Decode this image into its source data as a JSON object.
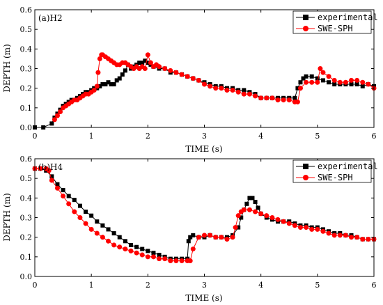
{
  "chart_data": [
    {
      "type": "scatter",
      "title": "(a)H2",
      "xlabel": "TIME (s)",
      "ylabel": "DEPTH (m)",
      "xlim": [
        0,
        6
      ],
      "ylim": [
        0,
        0.6
      ],
      "xticks": [
        "0",
        "1",
        "2",
        "3",
        "4",
        "5",
        "6"
      ],
      "yticks": [
        "0.0",
        "0.1",
        "0.2",
        "0.3",
        "0.4",
        "0.5",
        "0.6"
      ],
      "legend_position": "top-right",
      "series": [
        {
          "name": "experimental",
          "color": "#000000",
          "marker": "square",
          "x": [
            0.0,
            0.15,
            0.3,
            0.35,
            0.4,
            0.45,
            0.5,
            0.55,
            0.6,
            0.65,
            0.7,
            0.75,
            0.8,
            0.85,
            0.9,
            0.95,
            1.0,
            1.05,
            1.1,
            1.15,
            1.2,
            1.25,
            1.3,
            1.35,
            1.4,
            1.45,
            1.5,
            1.55,
            1.6,
            1.65,
            1.7,
            1.75,
            1.8,
            1.85,
            1.9,
            1.95,
            2.0,
            2.05,
            2.1,
            2.2,
            2.3,
            2.4,
            2.5,
            2.6,
            2.7,
            2.8,
            2.9,
            3.0,
            3.1,
            3.2,
            3.3,
            3.4,
            3.5,
            3.6,
            3.7,
            3.8,
            3.9,
            4.0,
            4.1,
            4.2,
            4.3,
            4.4,
            4.5,
            4.6,
            4.65,
            4.7,
            4.75,
            4.8,
            4.9,
            5.0,
            5.1,
            5.2,
            5.3,
            5.4,
            5.5,
            5.6,
            5.7,
            5.8,
            5.9,
            6.0
          ],
          "y": [
            0.0,
            0.0,
            0.02,
            0.05,
            0.07,
            0.09,
            0.11,
            0.12,
            0.13,
            0.14,
            0.14,
            0.15,
            0.16,
            0.17,
            0.18,
            0.18,
            0.19,
            0.2,
            0.2,
            0.21,
            0.22,
            0.22,
            0.23,
            0.22,
            0.22,
            0.24,
            0.25,
            0.27,
            0.29,
            0.32,
            0.3,
            0.31,
            0.32,
            0.33,
            0.33,
            0.34,
            0.33,
            0.32,
            0.31,
            0.3,
            0.3,
            0.28,
            0.28,
            0.27,
            0.26,
            0.25,
            0.24,
            0.23,
            0.22,
            0.21,
            0.21,
            0.2,
            0.2,
            0.19,
            0.19,
            0.18,
            0.17,
            0.15,
            0.15,
            0.15,
            0.15,
            0.15,
            0.15,
            0.15,
            0.2,
            0.23,
            0.25,
            0.26,
            0.26,
            0.25,
            0.24,
            0.23,
            0.22,
            0.22,
            0.22,
            0.22,
            0.22,
            0.21,
            0.22,
            0.21
          ]
        },
        {
          "name": "SWE-SPH",
          "color": "#ff0000",
          "marker": "circle",
          "x": [
            0.35,
            0.4,
            0.45,
            0.5,
            0.55,
            0.6,
            0.65,
            0.7,
            0.75,
            0.8,
            0.85,
            0.9,
            0.95,
            1.0,
            1.05,
            1.1,
            1.12,
            1.15,
            1.18,
            1.2,
            1.25,
            1.3,
            1.35,
            1.4,
            1.45,
            1.5,
            1.55,
            1.6,
            1.65,
            1.7,
            1.75,
            1.8,
            1.85,
            1.9,
            1.95,
            2.0,
            2.05,
            2.1,
            2.15,
            2.2,
            2.3,
            2.4,
            2.5,
            2.6,
            2.7,
            2.8,
            2.9,
            3.0,
            3.1,
            3.2,
            3.3,
            3.4,
            3.5,
            3.6,
            3.7,
            3.8,
            3.9,
            4.0,
            4.1,
            4.2,
            4.3,
            4.4,
            4.5,
            4.6,
            4.65,
            4.7,
            4.8,
            4.9,
            5.0,
            5.05,
            5.1,
            5.2,
            5.3,
            5.4,
            5.5,
            5.6,
            5.7,
            5.8,
            5.9,
            6.0
          ],
          "y": [
            0.04,
            0.06,
            0.08,
            0.1,
            0.11,
            0.12,
            0.13,
            0.14,
            0.14,
            0.15,
            0.16,
            0.17,
            0.17,
            0.18,
            0.19,
            0.21,
            0.28,
            0.35,
            0.37,
            0.37,
            0.36,
            0.35,
            0.34,
            0.33,
            0.32,
            0.32,
            0.33,
            0.33,
            0.32,
            0.31,
            0.3,
            0.31,
            0.3,
            0.31,
            0.3,
            0.37,
            0.33,
            0.31,
            0.32,
            0.31,
            0.3,
            0.29,
            0.28,
            0.27,
            0.26,
            0.25,
            0.24,
            0.22,
            0.21,
            0.2,
            0.2,
            0.19,
            0.19,
            0.18,
            0.17,
            0.17,
            0.16,
            0.15,
            0.15,
            0.15,
            0.14,
            0.14,
            0.14,
            0.13,
            0.13,
            0.2,
            0.23,
            0.23,
            0.23,
            0.3,
            0.28,
            0.26,
            0.24,
            0.23,
            0.23,
            0.24,
            0.24,
            0.23,
            0.22,
            0.2
          ]
        }
      ]
    },
    {
      "type": "scatter",
      "title": "(b)H4",
      "xlabel": "TIME (s)",
      "ylabel": "DEPTH (m)",
      "xlim": [
        0,
        6
      ],
      "ylim": [
        0,
        0.6
      ],
      "xticks": [
        "0",
        "1",
        "2",
        "3",
        "4",
        "5",
        "6"
      ],
      "yticks": [
        "0.0",
        "0.1",
        "0.2",
        "0.3",
        "0.4",
        "0.5",
        "0.6"
      ],
      "legend_position": "top-right",
      "series": [
        {
          "name": "experimental",
          "color": "#000000",
          "marker": "square",
          "x": [
            0.0,
            0.1,
            0.2,
            0.3,
            0.4,
            0.5,
            0.6,
            0.7,
            0.8,
            0.9,
            1.0,
            1.1,
            1.2,
            1.3,
            1.4,
            1.5,
            1.6,
            1.7,
            1.8,
            1.9,
            2.0,
            2.1,
            2.2,
            2.3,
            2.4,
            2.5,
            2.6,
            2.7,
            2.72,
            2.75,
            2.8,
            2.9,
            3.0,
            3.1,
            3.2,
            3.3,
            3.4,
            3.5,
            3.6,
            3.65,
            3.7,
            3.75,
            3.8,
            3.85,
            3.9,
            3.95,
            4.0,
            4.1,
            4.2,
            4.3,
            4.4,
            4.5,
            4.6,
            4.7,
            4.8,
            4.9,
            5.0,
            5.1,
            5.2,
            5.3,
            5.4,
            5.5,
            5.6,
            5.7,
            5.8,
            5.9,
            6.0
          ],
          "y": [
            0.55,
            0.55,
            0.54,
            0.51,
            0.47,
            0.44,
            0.41,
            0.39,
            0.36,
            0.33,
            0.31,
            0.28,
            0.26,
            0.24,
            0.22,
            0.2,
            0.18,
            0.16,
            0.15,
            0.14,
            0.13,
            0.12,
            0.11,
            0.1,
            0.09,
            0.09,
            0.09,
            0.09,
            0.18,
            0.2,
            0.21,
            0.2,
            0.2,
            0.21,
            0.2,
            0.2,
            0.2,
            0.21,
            0.25,
            0.3,
            0.34,
            0.37,
            0.4,
            0.4,
            0.38,
            0.35,
            0.32,
            0.3,
            0.29,
            0.28,
            0.28,
            0.28,
            0.27,
            0.26,
            0.26,
            0.25,
            0.25,
            0.24,
            0.23,
            0.22,
            0.22,
            0.21,
            0.21,
            0.2,
            0.19,
            0.19,
            0.19
          ]
        },
        {
          "name": "SWE-SPH",
          "color": "#ff0000",
          "marker": "circle",
          "x": [
            0.0,
            0.1,
            0.2,
            0.25,
            0.3,
            0.4,
            0.5,
            0.6,
            0.7,
            0.8,
            0.9,
            1.0,
            1.1,
            1.2,
            1.3,
            1.4,
            1.5,
            1.6,
            1.7,
            1.8,
            1.9,
            2.0,
            2.1,
            2.2,
            2.3,
            2.4,
            2.5,
            2.6,
            2.7,
            2.75,
            2.8,
            2.9,
            3.0,
            3.1,
            3.2,
            3.3,
            3.4,
            3.5,
            3.55,
            3.6,
            3.65,
            3.7,
            3.8,
            3.9,
            4.0,
            4.1,
            4.2,
            4.3,
            4.4,
            4.5,
            4.6,
            4.7,
            4.8,
            4.9,
            5.0,
            5.1,
            5.2,
            5.3,
            5.4,
            5.5,
            5.6,
            5.7,
            5.8,
            5.9,
            6.0
          ],
          "y": [
            0.55,
            0.55,
            0.55,
            0.54,
            0.49,
            0.45,
            0.41,
            0.37,
            0.33,
            0.3,
            0.27,
            0.24,
            0.22,
            0.2,
            0.18,
            0.16,
            0.15,
            0.14,
            0.13,
            0.12,
            0.11,
            0.1,
            0.1,
            0.09,
            0.09,
            0.08,
            0.08,
            0.08,
            0.08,
            0.08,
            0.14,
            0.2,
            0.21,
            0.21,
            0.2,
            0.2,
            0.19,
            0.2,
            0.25,
            0.31,
            0.33,
            0.34,
            0.34,
            0.33,
            0.32,
            0.31,
            0.3,
            0.29,
            0.28,
            0.27,
            0.26,
            0.25,
            0.25,
            0.24,
            0.24,
            0.23,
            0.22,
            0.21,
            0.21,
            0.21,
            0.2,
            0.2,
            0.19,
            0.19,
            0.19
          ]
        }
      ]
    }
  ]
}
